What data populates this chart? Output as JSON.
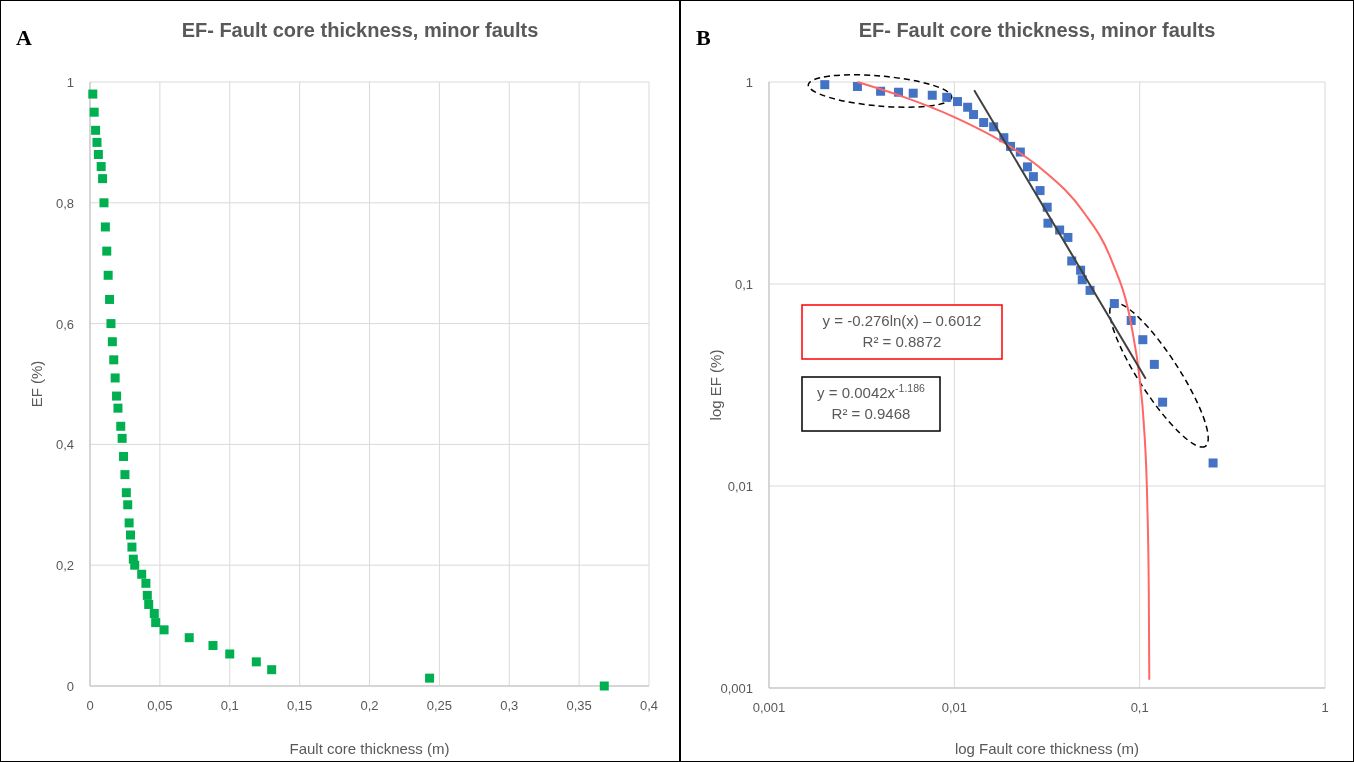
{
  "chart_data": [
    {
      "type": "scatter",
      "title": "EF- Fault core thickness, minor faults",
      "xlabel": "Fault core thickness (m)",
      "ylabel": "EF (%)",
      "annotations": [
        "A"
      ],
      "xlim": [
        0,
        0.4
      ],
      "ylim": [
        0,
        1
      ],
      "xticks": [
        {
          "value": 0,
          "label": "0"
        },
        {
          "value": 0.05,
          "label": "0,05"
        },
        {
          "value": 0.1,
          "label": "0,1"
        },
        {
          "value": 0.15,
          "label": "0,15"
        },
        {
          "value": 0.2,
          "label": "0,2"
        },
        {
          "value": 0.25,
          "label": "0,25"
        },
        {
          "value": 0.3,
          "label": "0,3"
        },
        {
          "value": 0.35,
          "label": "0,35"
        },
        {
          "value": 0.4,
          "label": "0,4"
        }
      ],
      "yticks": [
        {
          "value": 0,
          "label": "0"
        },
        {
          "value": 0.2,
          "label": "0,2"
        },
        {
          "value": 0.4,
          "label": "0,4"
        },
        {
          "value": 0.6,
          "label": "0,6"
        },
        {
          "value": 0.8,
          "label": "0,8"
        },
        {
          "value": 1,
          "label": "1"
        }
      ],
      "grid": true,
      "legend": false,
      "marker": "square",
      "series": [
        {
          "color": "#00b050",
          "x": [
            0.002,
            0.003,
            0.004,
            0.005,
            0.006,
            0.008,
            0.009,
            0.01,
            0.011,
            0.012,
            0.013,
            0.014,
            0.015,
            0.016,
            0.017,
            0.018,
            0.019,
            0.02,
            0.022,
            0.023,
            0.024,
            0.025,
            0.026,
            0.027,
            0.028,
            0.029,
            0.03,
            0.031,
            0.032,
            0.037,
            0.04,
            0.041,
            0.042,
            0.046,
            0.047,
            0.053,
            0.071,
            0.088,
            0.1,
            0.119,
            0.13,
            0.243,
            0.368
          ],
          "values": [
            0.98,
            0.95,
            0.92,
            0.9,
            0.88,
            0.86,
            0.84,
            0.8,
            0.76,
            0.72,
            0.68,
            0.64,
            0.6,
            0.57,
            0.54,
            0.51,
            0.48,
            0.46,
            0.43,
            0.41,
            0.38,
            0.35,
            0.32,
            0.3,
            0.27,
            0.25,
            0.23,
            0.21,
            0.2,
            0.185,
            0.17,
            0.15,
            0.135,
            0.12,
            0.105,
            0.093,
            0.08,
            0.067,
            0.053,
            0.04,
            0.027,
            0.013,
            0
          ]
        }
      ]
    },
    {
      "type": "scatter",
      "title": "EF- Fault core thickness, minor faults",
      "xlabel": "log Fault core thickness (m)",
      "ylabel": "log EF (%)",
      "annotations": [
        "B",
        "y = -0.276ln(x) – 0.6012\nR² = 0.8872",
        "y = 0.0042x$^{-1.186}$\nR² = 0.9468"
      ],
      "log": "xy",
      "xlim": [
        0.001,
        1
      ],
      "ylim": [
        0.001,
        1
      ],
      "xticks": [
        {
          "value": 0.001,
          "label": "0,001"
        },
        {
          "value": 0.01,
          "label": "0,01"
        },
        {
          "value": 0.1,
          "label": "0,1"
        },
        1
      ],
      "yticks": [
        {
          "value": 0.001,
          "label": "0,001"
        },
        {
          "value": 0.01,
          "label": "0,01"
        },
        {
          "value": 0.1,
          "label": "0,1"
        },
        1
      ],
      "grid": true,
      "legend": false,
      "marker": "square",
      "series": [
        {
          "color": "#4472c4",
          "x": [
            0.002,
            0.003,
            0.004,
            0.005,
            0.006,
            0.0076,
            0.0091,
            0.0104,
            0.0118,
            0.0127,
            0.0144,
            0.0163,
            0.0185,
            0.0201,
            0.0227,
            0.0248,
            0.0267,
            0.029,
            0.0317,
            0.032,
            0.037,
            0.041,
            0.043,
            0.048,
            0.049,
            0.054,
            0.073,
            0.09,
            0.104,
            0.12,
            0.133,
            0.249
          ],
          "values": [
            0.97,
            0.95,
            0.9,
            0.89,
            0.88,
            0.86,
            0.84,
            0.8,
            0.75,
            0.69,
            0.63,
            0.6,
            0.53,
            0.48,
            0.45,
            0.38,
            0.34,
            0.29,
            0.24,
            0.2,
            0.185,
            0.17,
            0.13,
            0.117,
            0.105,
            0.093,
            0.08,
            0.066,
            0.053,
            0.04,
            0.026,
            0.013
          ]
        },
        {
          "type": "line",
          "marker": "none",
          "color": "#ff6666",
          "x": [
            0.003,
            0.005,
            0.01,
            0.02,
            0.03,
            0.05,
            0.07,
            0.09,
            0.1,
            0.105,
            0.11,
            0.112,
            0.1127
          ],
          "values": [
            1.0,
            0.861,
            0.67,
            0.479,
            0.367,
            0.226,
            0.133,
            0.063,
            0.034,
            0.021,
            0.008,
            0.003,
            0.0011
          ]
        },
        {
          "type": "line",
          "marker": "none",
          "color": "#404040",
          "x": [
            0.0128,
            0.1078
          ],
          "values": [
            0.91,
            0.034
          ]
        }
      ]
    }
  ]
}
